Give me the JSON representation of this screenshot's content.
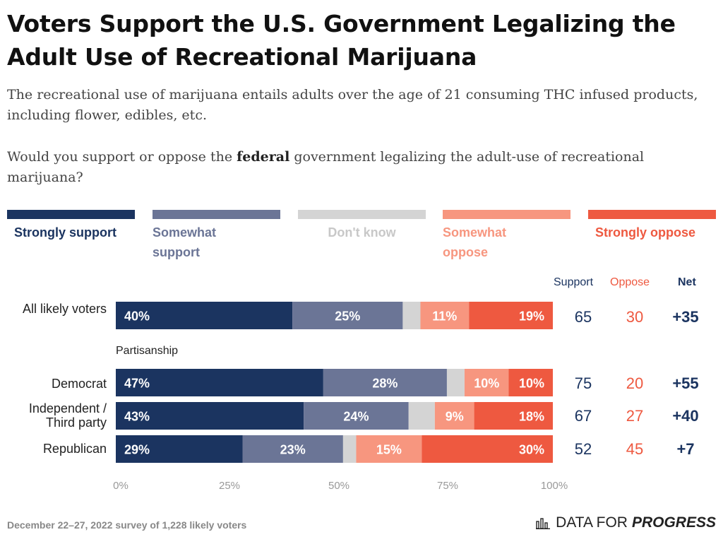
{
  "title": "Voters Support the U.S. Government Legalizing the Adult Use of Recreational Marijuana",
  "subtitle": "The recreational use of marijuana entails adults over the age of 21 consuming THC infused products, including flower, edibles, etc.",
  "question": {
    "before": "Would you support or oppose the ",
    "emphasis": "federal",
    "after": " government legalizing the adult-use of recreational marijuana?"
  },
  "legend": [
    {
      "label": "Strongly support",
      "color": "#1b3460"
    },
    {
      "label": "Somewhat support",
      "color": "#6b7596"
    },
    {
      "label": "Don't know",
      "color": "#d4d4d4"
    },
    {
      "label": "Somewhat oppose",
      "color": "#f7967f"
    },
    {
      "label": "Strongly oppose",
      "color": "#ee5940"
    }
  ],
  "columns": {
    "support": "Support",
    "oppose": "Oppose",
    "net": "Net"
  },
  "group_heading": "Partisanship",
  "colors": {
    "support_text": "#1b3460",
    "oppose_text": "#ee5940",
    "axis_text": "#999999"
  },
  "chart_data": {
    "type": "bar",
    "orientation": "horizontal",
    "stacked": true,
    "xlim": [
      0,
      100
    ],
    "ticks": [
      "0%",
      "25%",
      "50%",
      "75%",
      "100%"
    ],
    "categories": [
      "All likely voters",
      "Democrat",
      "Independent / Third party",
      "Republican"
    ],
    "series": [
      {
        "name": "Strongly support",
        "values": [
          40,
          47,
          43,
          29
        ],
        "labels": [
          "40%",
          "47%",
          "43%",
          "29%"
        ]
      },
      {
        "name": "Somewhat support",
        "values": [
          25,
          28,
          24,
          23
        ],
        "labels": [
          "25%",
          "28%",
          "24%",
          "23%"
        ]
      },
      {
        "name": "Don't know",
        "values": [
          4,
          4,
          6,
          3
        ],
        "labels": [
          "",
          "",
          "",
          ""
        ]
      },
      {
        "name": "Somewhat oppose",
        "values": [
          11,
          10,
          9,
          15
        ],
        "labels": [
          "11%",
          "10%",
          "9%",
          "15%"
        ]
      },
      {
        "name": "Strongly oppose",
        "values": [
          19,
          10,
          18,
          30
        ],
        "labels": [
          "19%",
          "10%",
          "18%",
          "30%"
        ]
      }
    ],
    "support": [
      "65",
      "75",
      "67",
      "52"
    ],
    "oppose": [
      "30",
      "20",
      "27",
      "45"
    ],
    "net": [
      "+35",
      "+55",
      "+40",
      "+7"
    ]
  },
  "footer": "December 22–27, 2022 survey of 1,228 likely voters",
  "logo": {
    "prefix": "DATA FOR",
    "strong": "PROGRESS",
    "icon": "bar-chart-icon"
  }
}
